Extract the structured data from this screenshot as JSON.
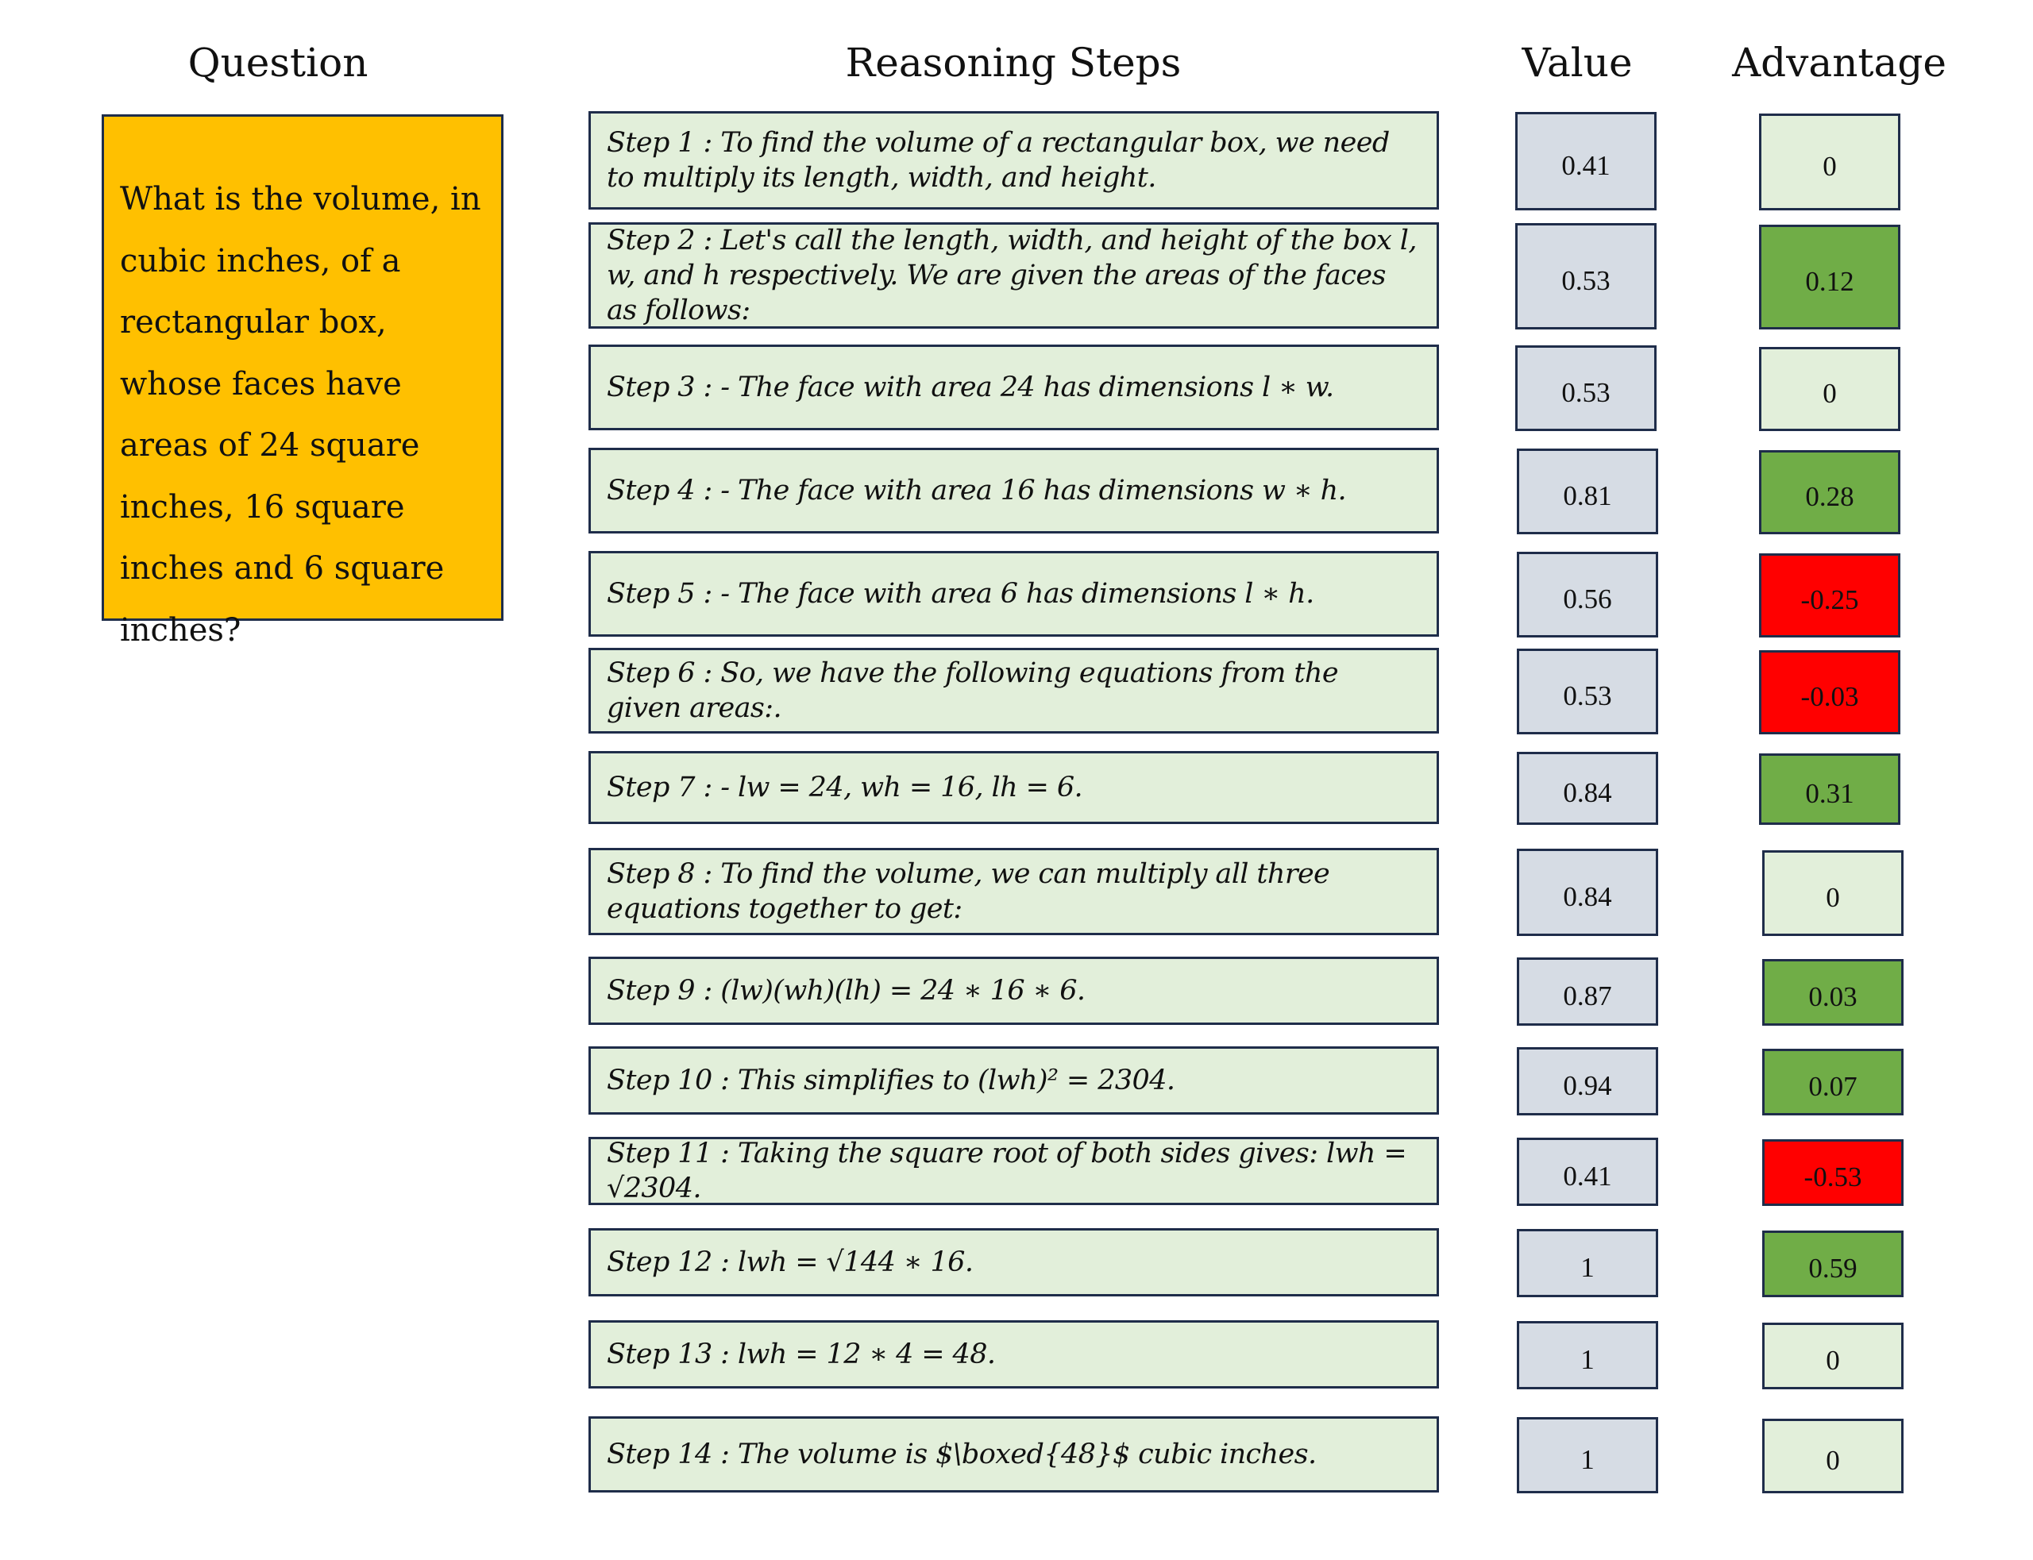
{
  "headers": {
    "question": "Question",
    "steps": "Reasoning Steps",
    "value": "Value",
    "advantage": "Advantage"
  },
  "question": "What is the volume, in cubic inches, of a rectangular box, whose faces have areas of 24 square inches, 16 square inches and 6 square inches?",
  "colors": {
    "question_bg": "#ffc000",
    "step_bg": "#e2efda",
    "value_bg": "#d6dce4",
    "adv_positive": "#70ad47",
    "adv_negative": "#ff0000",
    "adv_zero": "#e2efda",
    "border": "#1f2d4a"
  },
  "rows": [
    {
      "step": "Step 1 :  To find the volume of a rectangular box, we need to multiply its length, width, and height.",
      "value": "0.41",
      "advantage": "0"
    },
    {
      "step": "Step 2 :  Let's call the length, width, and height of the box l, w, and h respectively. We are given the areas of the faces as follows:",
      "value": "0.53",
      "advantage": "0.12"
    },
    {
      "step": "Step 3 :  - The face with area 24 has dimensions l ∗ w.",
      "value": "0.53",
      "advantage": "0"
    },
    {
      "step": "Step 4 : - The face with area 16 has dimensions w ∗ h.",
      "value": "0.81",
      "advantage": "0.28"
    },
    {
      "step": "Step 5 : - The face with area 6 has dimensions l ∗ h.",
      "value": "0.56",
      "advantage": "-0.25"
    },
    {
      "step": "Step 6 : So, we have the following equations from the given areas:.",
      "value": "0.53",
      "advantage": "-0.03"
    },
    {
      "step": "Step 7 : - lw = 24, wh = 16, lh = 6.",
      "value": "0.84",
      "advantage": "0.31"
    },
    {
      "step": "Step 8 : To find the volume, we can multiply all three equations together to get:",
      "value": "0.84",
      "advantage": "0"
    },
    {
      "step": "Step 9 :  (lw)(wh)(lh) = 24  ∗ 16  ∗ 6.",
      "value": "0.87",
      "advantage": "0.03"
    },
    {
      "step": "Step 10 : This simplifies to  (lwh)² = 2304.",
      "value": "0.94",
      "advantage": "0.07"
    },
    {
      "step": "Step 11 : Taking the square root of both sides gives: lwh = √2304.",
      "value": "0.41",
      "advantage": "-0.53"
    },
    {
      "step": "Step 12 : lwh = √144  ∗ 16.",
      "value": "1",
      "advantage": "0.59"
    },
    {
      "step": "Step 13 : lwh = 12 ∗ 4 = 48.",
      "value": "1",
      "advantage": "0"
    },
    {
      "step": "Step 14 : The volume is $\\boxed{48}$ cubic inches.",
      "value": "1",
      "advantage": "0"
    }
  ]
}
